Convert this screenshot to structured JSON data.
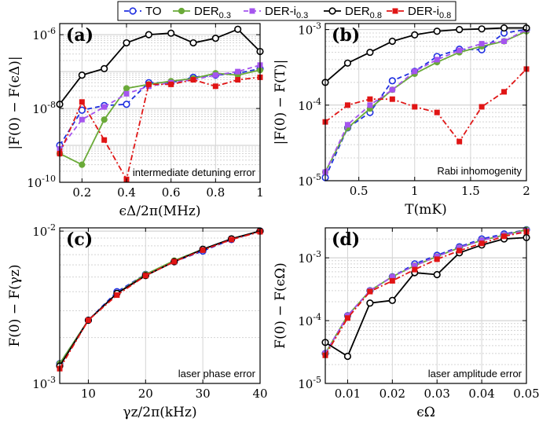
{
  "legend": {
    "entries": [
      {
        "key": "TO",
        "label": "TO",
        "color": "#1f2fe0",
        "dash": "6,4",
        "marker": "circle-open"
      },
      {
        "key": "DER03",
        "label": "DER",
        "sub": "0.3",
        "color": "#6aaa38",
        "dash": "",
        "marker": "circle-filled"
      },
      {
        "key": "DERi03",
        "label": "DER-i",
        "sub": "0.3",
        "color": "#a555ee",
        "dash": "6,4",
        "marker": "square-filled"
      },
      {
        "key": "DER08",
        "label": "DER",
        "sub": "0.8",
        "color": "#000000",
        "dash": "",
        "marker": "circle-open"
      },
      {
        "key": "DERi08",
        "label": "DER-i",
        "sub": "0.8",
        "color": "#e01515",
        "dash": "7,3,2,3",
        "marker": "square-filled"
      }
    ]
  },
  "chart_data": [
    {
      "type": "line",
      "panel": "(a)",
      "yscale": "log",
      "xlabel": "ϵΔ/2π(MHz)",
      "ylabel": "|F(0) − F(ϵΔ)|",
      "annotation": "intermediate detuning error",
      "xlim": [
        0.1,
        1.0
      ],
      "ylim": [
        1e-10,
        2e-06
      ],
      "xticks": [
        0.2,
        0.4,
        0.6,
        0.8,
        1.0
      ],
      "xticklabels": [
        "0.2",
        "0.4",
        "0.6",
        "0.8",
        "1"
      ],
      "yticks": [
        1e-10,
        1e-08,
        1e-06
      ],
      "yticklabels": [
        {
          "base": "10",
          "exp": "-10"
        },
        {
          "base": "10",
          "exp": "-8"
        },
        {
          "base": "10",
          "exp": "-6"
        }
      ],
      "x": [
        0.1,
        0.2,
        0.3,
        0.4,
        0.5,
        0.6,
        0.7,
        0.8,
        0.9,
        1.0
      ],
      "series": [
        {
          "key": "TO",
          "values": [
            1e-09,
            9e-09,
            1.2e-08,
            1.3e-08,
            5e-08,
            5e-08,
            7e-08,
            8e-08,
            9e-08,
            1.2e-07
          ]
        },
        {
          "key": "DER03",
          "values": [
            6e-10,
            3e-10,
            5e-09,
            3.5e-08,
            4.5e-08,
            5.5e-08,
            6.5e-08,
            9e-08,
            8e-08,
            1.1e-07
          ]
        },
        {
          "key": "DERi03",
          "values": [
            8e-10,
            5e-09,
            1.1e-08,
            2.5e-08,
            4e-08,
            5e-08,
            6e-08,
            8e-08,
            1e-07,
            1.5e-07
          ]
        },
        {
          "key": "DER08",
          "values": [
            1.3e-08,
            8e-08,
            1.2e-07,
            6e-07,
            1e-06,
            1.1e-06,
            6e-07,
            8e-07,
            1.4e-06,
            3.5e-07
          ]
        },
        {
          "key": "DERi08",
          "values": [
            6e-10,
            1.5e-08,
            1.4e-09,
            1.2e-10,
            4.5e-08,
            4.5e-08,
            6e-08,
            4e-08,
            6e-08,
            7e-08
          ]
        }
      ]
    },
    {
      "type": "line",
      "panel": "(b)",
      "yscale": "log",
      "xlabel": "T(mK)",
      "ylabel": "|F(0) − F(T)|",
      "annotation": "Rabi inhomogenity",
      "xlim": [
        0.2,
        2.0
      ],
      "ylim": [
        1e-05,
        0.0012
      ],
      "xticks": [
        0.5,
        1.0,
        1.5,
        2.0
      ],
      "xticklabels": [
        "0.5",
        "1",
        "1.5",
        "2"
      ],
      "yticks": [
        1e-05,
        0.0001,
        0.001
      ],
      "yticklabels": [
        {
          "base": "10",
          "exp": "-5"
        },
        {
          "base": "10",
          "exp": "-4"
        },
        {
          "base": "10",
          "exp": "-3"
        }
      ],
      "x": [
        0.2,
        0.4,
        0.6,
        0.8,
        1.0,
        1.2,
        1.4,
        1.6,
        1.8,
        2.0
      ],
      "series": [
        {
          "key": "TO",
          "values": [
            1.1e-05,
            5e-05,
            8e-05,
            0.00021,
            0.00028,
            0.00044,
            0.00055,
            0.00054,
            0.0009,
            0.001
          ]
        },
        {
          "key": "DER03",
          "values": [
            1.3e-05,
            5e-05,
            9e-05,
            0.00016,
            0.00026,
            0.00037,
            0.0005,
            0.0006,
            0.0007,
            0.00095
          ]
        },
        {
          "key": "DERi03",
          "values": [
            1.3e-05,
            5.5e-05,
            0.0001,
            0.00016,
            0.00028,
            0.0004,
            0.00053,
            0.00065,
            0.0007,
            0.001
          ]
        },
        {
          "key": "DER08",
          "values": [
            0.0002,
            0.00036,
            0.0005,
            0.0007,
            0.00085,
            0.00095,
            0.001,
            0.00102,
            0.00105,
            0.00105
          ]
        },
        {
          "key": "DERi08",
          "values": [
            6e-05,
            0.0001,
            0.00012,
            0.00012,
            9.5e-05,
            8e-05,
            3.3e-05,
            9.5e-05,
            0.00015,
            0.0003
          ]
        }
      ]
    },
    {
      "type": "line",
      "panel": "(c)",
      "yscale": "log",
      "xlabel": "γz/2π(kHz)",
      "ylabel": "F(0) − F(γz)",
      "annotation": "laser phase error",
      "xlim": [
        5,
        40
      ],
      "ylim": [
        0.001,
        0.0105
      ],
      "xticks": [
        10,
        20,
        30,
        40
      ],
      "xticklabels": [
        "10",
        "20",
        "30",
        "40"
      ],
      "yticks": [
        0.001,
        0.01
      ],
      "yticklabels": [
        {
          "base": "10",
          "exp": "-3"
        },
        {
          "base": "10",
          "exp": "-2"
        }
      ],
      "x": [
        5,
        10,
        15,
        20,
        25,
        30,
        35,
        40
      ],
      "series": [
        {
          "key": "TO",
          "values": [
            0.00135,
            0.0026,
            0.004,
            0.0052,
            0.0063,
            0.0074,
            0.0088,
            0.01
          ]
        },
        {
          "key": "DER03",
          "values": [
            0.00135,
            0.0026,
            0.0039,
            0.0052,
            0.0064,
            0.0076,
            0.0089,
            0.01
          ]
        },
        {
          "key": "DERi03",
          "values": [
            0.0013,
            0.0026,
            0.0039,
            0.0051,
            0.0063,
            0.0076,
            0.0089,
            0.01
          ]
        },
        {
          "key": "DER08",
          "values": [
            0.0013,
            0.0026,
            0.0039,
            0.0051,
            0.0063,
            0.0076,
            0.0089,
            0.01
          ]
        },
        {
          "key": "DERi08",
          "values": [
            0.00125,
            0.0026,
            0.0038,
            0.0051,
            0.0063,
            0.0075,
            0.0088,
            0.0099
          ]
        }
      ]
    },
    {
      "type": "line",
      "panel": "(d)",
      "yscale": "log",
      "xlabel": "ϵΩ",
      "ylabel": "F(0) − F(ϵΩ)",
      "annotation": "laser amplitude error",
      "xlim": [
        0.005,
        0.05
      ],
      "ylim": [
        1e-05,
        0.003
      ],
      "xticks": [
        0.01,
        0.02,
        0.03,
        0.04,
        0.05
      ],
      "xticklabels": [
        "0.01",
        "0.02",
        "0.03",
        "0.04",
        "0.05"
      ],
      "yticks": [
        1e-05,
        0.0001,
        0.001
      ],
      "yticklabels": [
        {
          "base": "10",
          "exp": "-5"
        },
        {
          "base": "10",
          "exp": "-4"
        },
        {
          "base": "10",
          "exp": "-3"
        }
      ],
      "x": [
        0.005,
        0.01,
        0.015,
        0.02,
        0.025,
        0.03,
        0.035,
        0.04,
        0.045,
        0.05
      ],
      "series": [
        {
          "key": "TO",
          "values": [
            3e-05,
            0.00012,
            0.0003,
            0.0005,
            0.0008,
            0.0011,
            0.0015,
            0.002,
            0.0024,
            0.0028
          ]
        },
        {
          "key": "DER03",
          "values": [
            3e-05,
            0.00012,
            0.0003,
            0.0005,
            0.00075,
            0.00105,
            0.00145,
            0.0019,
            0.0023,
            0.0028
          ]
        },
        {
          "key": "DERi03",
          "values": [
            3e-05,
            0.00012,
            0.0003,
            0.0005,
            0.00075,
            0.00105,
            0.00145,
            0.0019,
            0.0023,
            0.0027
          ]
        },
        {
          "key": "DER08",
          "values": [
            4.5e-05,
            2.7e-05,
            0.00019,
            0.00021,
            0.00058,
            0.00054,
            0.0012,
            0.0016,
            0.002,
            0.0021
          ]
        },
        {
          "key": "DERi08",
          "values": [
            2.8e-05,
            0.00011,
            0.00029,
            0.00043,
            0.00065,
            0.00095,
            0.0013,
            0.0017,
            0.0022,
            0.0026
          ]
        }
      ]
    }
  ]
}
